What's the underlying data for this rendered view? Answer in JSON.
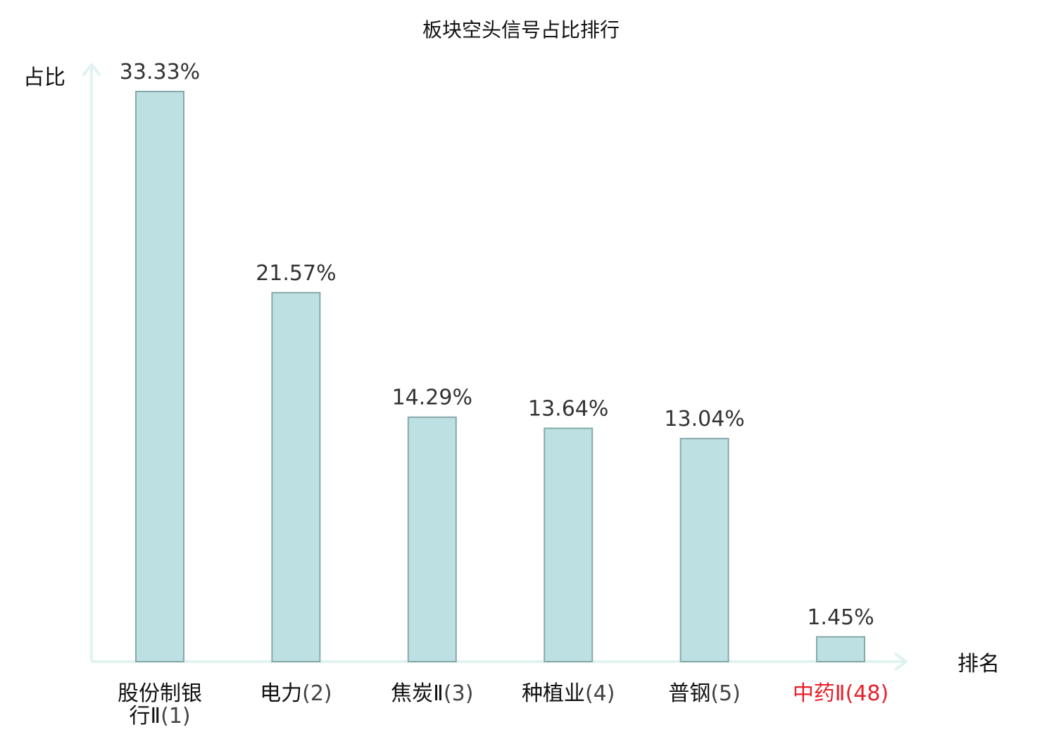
{
  "chart_data": {
    "type": "bar",
    "title": "板块空头信号占比排行",
    "ylabel": "占比",
    "xlabel": "排名",
    "ylim": [
      0,
      34.5
    ],
    "grid": false,
    "legend": "none",
    "value_format": "percent",
    "categories": [
      {
        "name": "股份制银行Ⅱ",
        "rank": "(1)",
        "highlight": false
      },
      {
        "name": "电力",
        "rank": "(2)",
        "highlight": false
      },
      {
        "name": "焦炭Ⅱ",
        "rank": "(3)",
        "highlight": false
      },
      {
        "name": "种植业",
        "rank": "(4)",
        "highlight": false
      },
      {
        "name": "普钢",
        "rank": "(5)",
        "highlight": false
      },
      {
        "name": "中药Ⅱ",
        "rank": "(48)",
        "highlight": true
      }
    ],
    "values": [
      33.33,
      21.57,
      14.29,
      13.64,
      13.04,
      1.45
    ],
    "value_labels": [
      "33.33%",
      "21.57%",
      "14.29%",
      "13.64%",
      "13.04%",
      "1.45%"
    ]
  },
  "colors": {
    "bar_fill": "#bde0e3",
    "bar_stroke": "#88a9ab",
    "axis": "#e0f3f0",
    "highlight_text": "#e8202a",
    "normal_text": "#111111"
  }
}
